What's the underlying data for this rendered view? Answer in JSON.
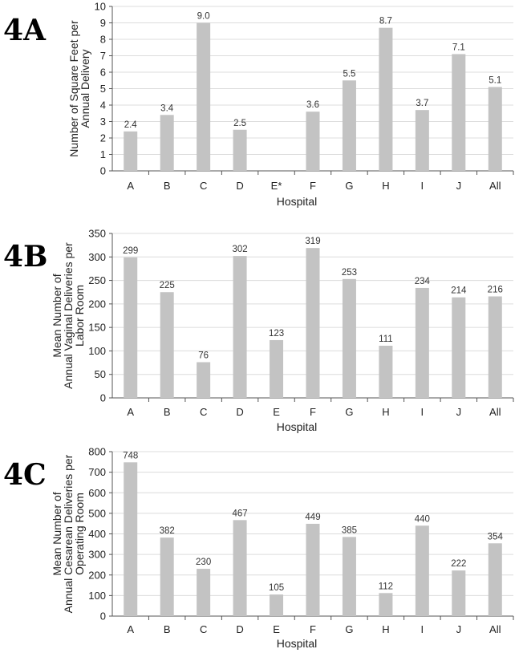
{
  "chart_data": [
    {
      "type": "bar",
      "panel_label": "4A",
      "categories": [
        "A",
        "B",
        "C",
        "D",
        "E*",
        "F",
        "G",
        "H",
        "I",
        "J",
        "All"
      ],
      "values": [
        2.4,
        3.4,
        9.0,
        2.5,
        null,
        3.6,
        5.5,
        8.7,
        3.7,
        7.1,
        5.1
      ],
      "value_labels": [
        "2.4",
        "3.4",
        "9.0",
        "2.5",
        "",
        "3.6",
        "5.5",
        "8.7",
        "3.7",
        "7.1",
        "5.1"
      ],
      "xlabel": "Hospital",
      "ylabel_lines": [
        "Number of Square Feet per",
        "Annual Delivery"
      ],
      "ylim": [
        0,
        10
      ],
      "yticks": [
        0,
        1,
        2,
        3,
        4,
        5,
        6,
        7,
        8,
        9,
        10
      ],
      "grid": true
    },
    {
      "type": "bar",
      "panel_label": "4B",
      "categories": [
        "A",
        "B",
        "C",
        "D",
        "E",
        "F",
        "G",
        "H",
        "I",
        "J",
        "All"
      ],
      "values": [
        299,
        225,
        76,
        302,
        123,
        319,
        253,
        111,
        234,
        214,
        216
      ],
      "value_labels": [
        "299",
        "225",
        "76",
        "302",
        "123",
        "319",
        "253",
        "111",
        "234",
        "214",
        "216"
      ],
      "xlabel": "Hospital",
      "ylabel_lines": [
        "Mean Number of",
        "Annual Vaginal Deliveries per",
        "Labor Room"
      ],
      "ylim": [
        0,
        350
      ],
      "yticks": [
        0,
        50,
        100,
        150,
        200,
        250,
        300,
        350
      ],
      "grid": true
    },
    {
      "type": "bar",
      "panel_label": "4C",
      "categories": [
        "A",
        "B",
        "C",
        "D",
        "E",
        "F",
        "G",
        "H",
        "I",
        "J",
        "All"
      ],
      "values": [
        748,
        382,
        230,
        467,
        105,
        449,
        385,
        112,
        440,
        222,
        354
      ],
      "value_labels": [
        "748",
        "382",
        "230",
        "467",
        "105",
        "449",
        "385",
        "112",
        "440",
        "222",
        "354"
      ],
      "xlabel": "Hospital",
      "ylabel_lines": [
        "Mean Number of",
        "Annual Cesarean Deliveries per",
        "Operating Room"
      ],
      "ylim": [
        0,
        800
      ],
      "yticks": [
        0,
        100,
        200,
        300,
        400,
        500,
        600,
        700,
        800
      ],
      "grid": true
    }
  ]
}
